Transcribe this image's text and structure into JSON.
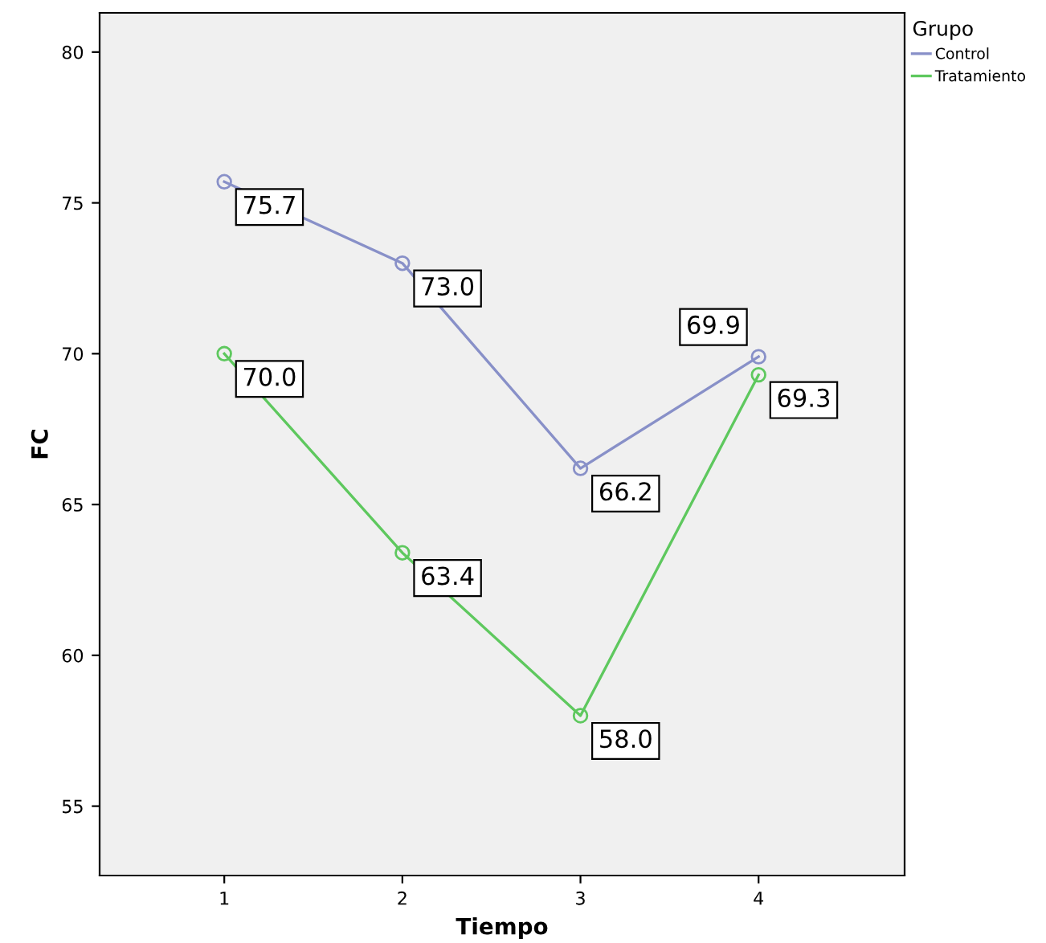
{
  "chart_data": {
    "type": "line",
    "xlabel": "Tiempo",
    "ylabel": "FC",
    "legend_title": "Grupo",
    "x": [
      1,
      2,
      3,
      4
    ],
    "series": [
      {
        "name": "Control",
        "color": "#8890c8",
        "values": [
          75.7,
          73.0,
          66.2,
          69.9
        ],
        "value_labels": [
          "75.7",
          "73.0",
          "66.2",
          "69.9"
        ]
      },
      {
        "name": "Tratamiento",
        "color": "#5ec85e",
        "values": [
          70.0,
          63.4,
          58.0,
          69.3
        ],
        "value_labels": [
          "70.0",
          "63.4",
          "58.0",
          "69.3"
        ]
      }
    ],
    "xlim": [
      0.3,
      4.82
    ],
    "xticks": [
      1,
      2,
      3,
      4
    ],
    "ylim": [
      52.7,
      81.3
    ],
    "yticks": [
      55,
      60,
      65,
      70,
      75,
      80
    ],
    "legend": "top right",
    "marker": "circle",
    "line_style": "solid",
    "grid": false
  }
}
